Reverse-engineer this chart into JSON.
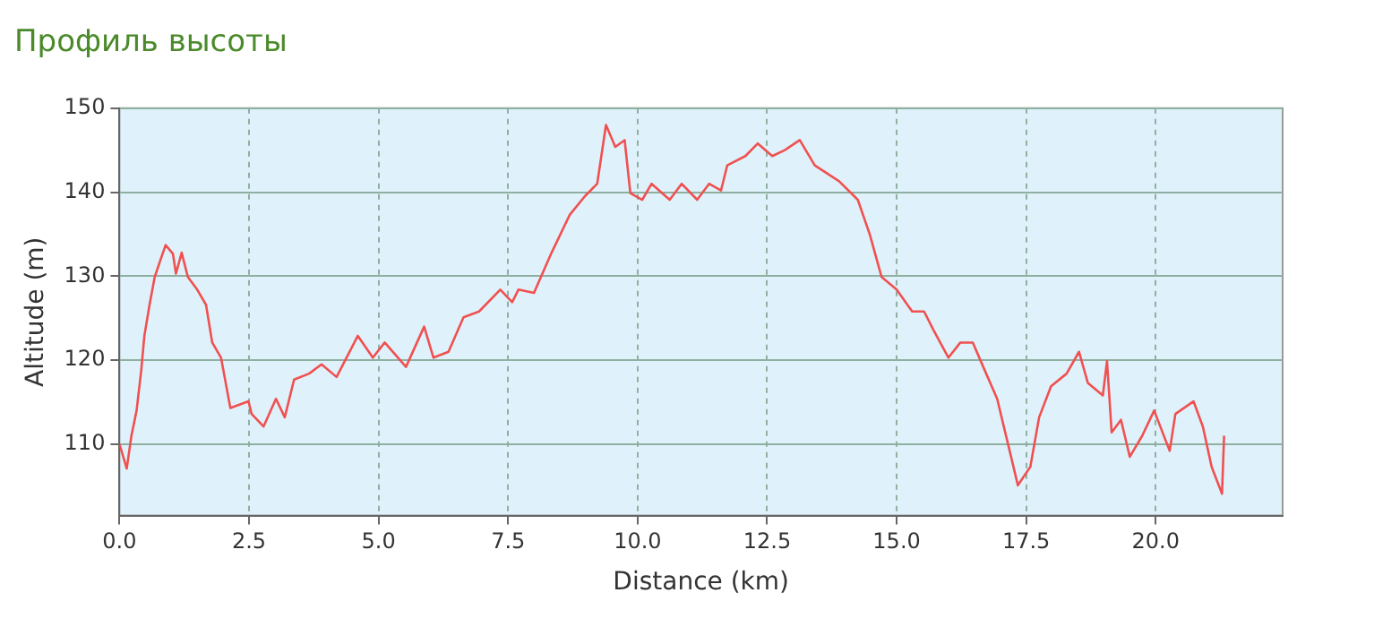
{
  "chart_data": {
    "type": "line",
    "title": "Профиль высоты",
    "xlabel": "Distance (km)",
    "ylabel": "Altitude (m)",
    "x": [
      0,
      0.14,
      0.23,
      0.33,
      0.42,
      0.48,
      0.58,
      0.68,
      0.8,
      0.89,
      1.03,
      1.09,
      1.2,
      1.32,
      1.5,
      1.67,
      1.79,
      1.96,
      2.14,
      2.49,
      2.55,
      2.78,
      3.02,
      3.19,
      3.37,
      3.66,
      3.9,
      4.19,
      4.6,
      4.89,
      5.12,
      5.53,
      5.88,
      6.06,
      6.35,
      6.64,
      6.94,
      7.35,
      7.58,
      7.7,
      8.0,
      8.34,
      8.69,
      8.98,
      9.22,
      9.39,
      9.57,
      9.75,
      9.86,
      10.09,
      10.27,
      10.62,
      10.85,
      11.15,
      11.38,
      11.61,
      11.73,
      12.08,
      12.32,
      12.6,
      12.84,
      13.13,
      13.42,
      13.89,
      14.25,
      14.48,
      14.71,
      15.0,
      15.3,
      15.53,
      15.71,
      16.0,
      16.23,
      16.47,
      16.7,
      16.94,
      17.17,
      17.34,
      17.58,
      17.75,
      17.98,
      18.28,
      18.52,
      18.69,
      18.98,
      19.06,
      19.15,
      19.33,
      19.5,
      19.74,
      19.97,
      20.27,
      20.38,
      20.73,
      20.91,
      21.08,
      21.28,
      21.32
    ],
    "series": [
      {
        "color": "#f05050",
        "values": [
          110,
          107.1,
          111,
          114,
          118.8,
          122.9,
          126.6,
          129.9,
          132.1,
          133.7,
          132.7,
          130.3,
          132.8,
          129.9,
          128.4,
          126.6,
          122.1,
          120.3,
          114.3,
          115.1,
          113.6,
          112.1,
          115.4,
          113.2,
          117.7,
          118.4,
          119.5,
          118,
          122.9,
          120.3,
          122.1,
          119.2,
          124,
          120.3,
          121,
          125.1,
          125.8,
          128.4,
          126.9,
          128.4,
          128,
          132.8,
          137.3,
          139.5,
          141,
          148,
          145.4,
          146.2,
          139.9,
          139.1,
          141,
          139.1,
          141,
          139.1,
          141,
          140.2,
          143.2,
          144.3,
          145.8,
          144.3,
          145,
          146.2,
          143.2,
          141.3,
          139.1,
          135,
          129.9,
          128.4,
          125.8,
          125.8,
          123.6,
          120.3,
          122.1,
          122.1,
          118.8,
          115.4,
          109.5,
          105.1,
          107.3,
          113.2,
          116.9,
          118.4,
          121,
          117.3,
          115.8,
          119.9,
          111.4,
          112.9,
          108.5,
          111,
          114,
          109.2,
          113.6,
          115.1,
          112.1,
          107.3,
          104.1,
          111
        ]
      }
    ],
    "xlim": [
      0,
      22.45
    ],
    "ylim": [
      101.5,
      150
    ],
    "xticks": [
      {
        "value": 0,
        "label": "0.0"
      },
      {
        "value": 2.5,
        "label": "2.5"
      },
      {
        "value": 5,
        "label": "5.0"
      },
      {
        "value": 7.5,
        "label": "7.5"
      },
      {
        "value": 10,
        "label": "10.0"
      },
      {
        "value": 12.5,
        "label": "12.5"
      },
      {
        "value": 15,
        "label": "15.0"
      },
      {
        "value": 17.5,
        "label": "17.5"
      },
      {
        "value": 20,
        "label": "20.0"
      }
    ],
    "yticks": [
      110,
      120,
      130,
      140,
      150
    ],
    "grid": true,
    "legend": false,
    "marker": "none",
    "line_style": "solid"
  }
}
